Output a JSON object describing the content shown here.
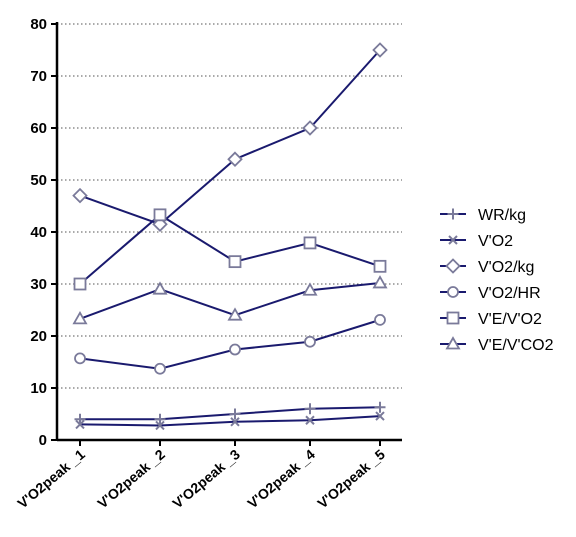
{
  "chart_data": {
    "type": "line",
    "categories": [
      "V'O2peak _1",
      "V'O2peak _2",
      "V'O2peak _3",
      "V'O2peak _4",
      "V'O2peak _5"
    ],
    "ylim": [
      0,
      80
    ],
    "yticks": [
      0,
      10,
      20,
      30,
      40,
      50,
      60,
      70,
      80
    ],
    "grid": "horizontal dotted",
    "legend_position": "right",
    "line_color": "#1a1a6e",
    "marker_stroke": "#7a7a9a",
    "series": [
      {
        "name": "WR/kg",
        "marker": "plus",
        "values": [
          4.0,
          4.0,
          5.0,
          6.0,
          6.3
        ]
      },
      {
        "name": "V'O2",
        "marker": "cross",
        "values": [
          3.0,
          2.8,
          3.5,
          3.8,
          4.6
        ]
      },
      {
        "name": "V'O2/kg",
        "marker": "diamond",
        "values": [
          47,
          41.5,
          54,
          60,
          75
        ]
      },
      {
        "name": "V'O2/HR",
        "marker": "circle",
        "values": [
          15.7,
          13.7,
          17.4,
          18.9,
          23.1
        ]
      },
      {
        "name": "V'E/V'O2",
        "marker": "square",
        "values": [
          30,
          43.3,
          34.3,
          37.9,
          33.4
        ]
      },
      {
        "name": "V'E/V'CO2",
        "marker": "triangle",
        "values": [
          23.3,
          29,
          24,
          28.8,
          30.2
        ]
      }
    ]
  }
}
